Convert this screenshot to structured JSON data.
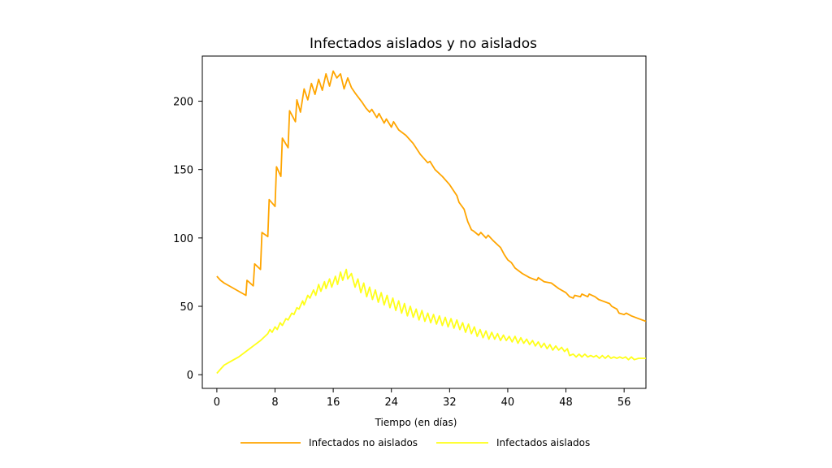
{
  "chart_data": {
    "type": "line",
    "title": "Infectados aislados y no aislados",
    "xlabel": "Tiempo (en días)",
    "ylabel": "",
    "xlim": [
      -2,
      59
    ],
    "ylim": [
      -10,
      233
    ],
    "xticks": [
      0,
      8,
      16,
      24,
      32,
      40,
      48,
      56
    ],
    "yticks": [
      0,
      50,
      100,
      150,
      200
    ],
    "grid": false,
    "legend_position": "bottom-center",
    "series": [
      {
        "name": "Infectados no aislados",
        "color": "#ffa500",
        "points": [
          [
            0,
            72
          ],
          [
            0.5,
            69
          ],
          [
            1,
            67
          ],
          [
            2,
            64
          ],
          [
            3,
            61
          ],
          [
            4,
            58
          ],
          [
            4.15,
            69
          ],
          [
            5,
            65
          ],
          [
            5.2,
            81
          ],
          [
            6,
            77
          ],
          [
            6.2,
            104
          ],
          [
            7,
            101
          ],
          [
            7.2,
            128
          ],
          [
            8,
            123
          ],
          [
            8.2,
            152
          ],
          [
            8.8,
            145
          ],
          [
            9,
            173
          ],
          [
            9.8,
            166
          ],
          [
            10,
            193
          ],
          [
            10.8,
            185
          ],
          [
            11,
            201
          ],
          [
            11.5,
            192
          ],
          [
            12,
            209
          ],
          [
            12.5,
            201
          ],
          [
            13,
            213
          ],
          [
            13.5,
            205
          ],
          [
            14,
            216
          ],
          [
            14.5,
            208
          ],
          [
            15,
            220
          ],
          [
            15.5,
            211
          ],
          [
            16,
            222
          ],
          [
            16.5,
            217
          ],
          [
            17,
            220
          ],
          [
            17.5,
            209
          ],
          [
            18,
            217
          ],
          [
            18.5,
            210
          ],
          [
            19,
            206
          ],
          [
            20,
            199
          ],
          [
            20.5,
            195
          ],
          [
            21,
            192
          ],
          [
            21.3,
            194
          ],
          [
            22,
            188
          ],
          [
            22.3,
            191
          ],
          [
            23,
            184
          ],
          [
            23.3,
            187
          ],
          [
            24,
            181
          ],
          [
            24.3,
            185
          ],
          [
            25,
            179
          ],
          [
            26,
            175
          ],
          [
            27,
            169
          ],
          [
            28,
            161
          ],
          [
            29,
            155
          ],
          [
            29.3,
            156
          ],
          [
            30,
            150
          ],
          [
            31,
            145
          ],
          [
            32,
            139
          ],
          [
            33,
            131
          ],
          [
            33.3,
            126
          ],
          [
            34,
            121
          ],
          [
            34.5,
            112
          ],
          [
            35,
            106
          ],
          [
            35.3,
            105
          ],
          [
            36,
            102
          ],
          [
            36.3,
            104
          ],
          [
            37,
            100
          ],
          [
            37.3,
            102
          ],
          [
            38,
            98
          ],
          [
            39,
            93
          ],
          [
            39.5,
            88
          ],
          [
            40,
            84
          ],
          [
            40.5,
            82
          ],
          [
            41,
            78
          ],
          [
            42,
            74
          ],
          [
            43,
            71
          ],
          [
            44,
            69
          ],
          [
            44.2,
            71
          ],
          [
            45,
            68
          ],
          [
            46,
            67
          ],
          [
            47,
            63
          ],
          [
            48,
            60
          ],
          [
            48.5,
            57
          ],
          [
            49,
            56
          ],
          [
            49.2,
            58
          ],
          [
            50,
            57
          ],
          [
            50.2,
            59
          ],
          [
            51,
            57
          ],
          [
            51.2,
            59
          ],
          [
            52,
            57
          ],
          [
            52.5,
            55
          ],
          [
            53,
            54
          ],
          [
            54,
            52
          ],
          [
            54.3,
            50
          ],
          [
            55,
            48
          ],
          [
            55.3,
            45
          ],
          [
            56,
            44
          ],
          [
            56.3,
            45
          ],
          [
            57,
            43
          ],
          [
            58,
            41
          ],
          [
            59,
            39
          ]
        ]
      },
      {
        "name": "Infectados aislados",
        "color": "#ffff1a",
        "points": [
          [
            0,
            1
          ],
          [
            0.5,
            4
          ],
          [
            1,
            7
          ],
          [
            2,
            10
          ],
          [
            3,
            13
          ],
          [
            4,
            17
          ],
          [
            5,
            21
          ],
          [
            6,
            25
          ],
          [
            7,
            30
          ],
          [
            7.3,
            33
          ],
          [
            7.6,
            31
          ],
          [
            8,
            35
          ],
          [
            8.3,
            33
          ],
          [
            8.7,
            38
          ],
          [
            9,
            36
          ],
          [
            9.5,
            41
          ],
          [
            9.8,
            40
          ],
          [
            10.3,
            45
          ],
          [
            10.6,
            44
          ],
          [
            11,
            49
          ],
          [
            11.3,
            48
          ],
          [
            11.8,
            54
          ],
          [
            12,
            51
          ],
          [
            12.5,
            58
          ],
          [
            12.8,
            56
          ],
          [
            13.3,
            62
          ],
          [
            13.6,
            58
          ],
          [
            14,
            66
          ],
          [
            14.3,
            61
          ],
          [
            14.8,
            68
          ],
          [
            15,
            63
          ],
          [
            15.5,
            70
          ],
          [
            15.8,
            64
          ],
          [
            16.3,
            72
          ],
          [
            16.6,
            66
          ],
          [
            17,
            75
          ],
          [
            17.3,
            69
          ],
          [
            17.8,
            77
          ],
          [
            18,
            70
          ],
          [
            18.5,
            74
          ],
          [
            19,
            64
          ],
          [
            19.4,
            70
          ],
          [
            19.8,
            60
          ],
          [
            20.2,
            67
          ],
          [
            20.6,
            57
          ],
          [
            21,
            64
          ],
          [
            21.4,
            55
          ],
          [
            21.8,
            62
          ],
          [
            22.2,
            53
          ],
          [
            22.6,
            60
          ],
          [
            23,
            51
          ],
          [
            23.4,
            58
          ],
          [
            23.8,
            49
          ],
          [
            24.2,
            56
          ],
          [
            24.6,
            47
          ],
          [
            25,
            54
          ],
          [
            25.4,
            45
          ],
          [
            25.8,
            52
          ],
          [
            26.2,
            43
          ],
          [
            26.6,
            50
          ],
          [
            27,
            42
          ],
          [
            27.4,
            48
          ],
          [
            27.8,
            40
          ],
          [
            28.2,
            47
          ],
          [
            28.6,
            39
          ],
          [
            29,
            45
          ],
          [
            29.4,
            38
          ],
          [
            29.8,
            44
          ],
          [
            30.2,
            37
          ],
          [
            30.6,
            43
          ],
          [
            31,
            36
          ],
          [
            31.4,
            42
          ],
          [
            31.8,
            35
          ],
          [
            32.2,
            41
          ],
          [
            32.6,
            34
          ],
          [
            33,
            40
          ],
          [
            33.4,
            33
          ],
          [
            33.8,
            38
          ],
          [
            34.2,
            31
          ],
          [
            34.6,
            37
          ],
          [
            35,
            30
          ],
          [
            35.4,
            35
          ],
          [
            35.8,
            28
          ],
          [
            36.2,
            33
          ],
          [
            36.6,
            27
          ],
          [
            37,
            32
          ],
          [
            37.4,
            26
          ],
          [
            37.8,
            31
          ],
          [
            38.2,
            26
          ],
          [
            38.6,
            30
          ],
          [
            39,
            25
          ],
          [
            39.4,
            29
          ],
          [
            39.8,
            25
          ],
          [
            40.2,
            28
          ],
          [
            40.6,
            24
          ],
          [
            41,
            28
          ],
          [
            41.4,
            23
          ],
          [
            41.8,
            27
          ],
          [
            42.2,
            23
          ],
          [
            42.6,
            26
          ],
          [
            43,
            22
          ],
          [
            43.4,
            25
          ],
          [
            43.8,
            21
          ],
          [
            44.2,
            24
          ],
          [
            44.6,
            20
          ],
          [
            45,
            23
          ],
          [
            45.4,
            19
          ],
          [
            45.8,
            22
          ],
          [
            46.2,
            18
          ],
          [
            46.6,
            21
          ],
          [
            47,
            18
          ],
          [
            47.4,
            20
          ],
          [
            47.8,
            17
          ],
          [
            48.2,
            19
          ],
          [
            48.5,
            14
          ],
          [
            49,
            15
          ],
          [
            49.4,
            13
          ],
          [
            49.8,
            15
          ],
          [
            50.2,
            13
          ],
          [
            50.6,
            15
          ],
          [
            51,
            13
          ],
          [
            51.4,
            14
          ],
          [
            51.8,
            13
          ],
          [
            52.2,
            14
          ],
          [
            52.6,
            12
          ],
          [
            53,
            14
          ],
          [
            53.4,
            12
          ],
          [
            53.8,
            14
          ],
          [
            54.2,
            12
          ],
          [
            54.6,
            13
          ],
          [
            55,
            12
          ],
          [
            55.4,
            13
          ],
          [
            55.8,
            12
          ],
          [
            56.2,
            13
          ],
          [
            56.6,
            11
          ],
          [
            57,
            13
          ],
          [
            57.4,
            11
          ],
          [
            58,
            12
          ],
          [
            59,
            12
          ]
        ]
      }
    ]
  }
}
